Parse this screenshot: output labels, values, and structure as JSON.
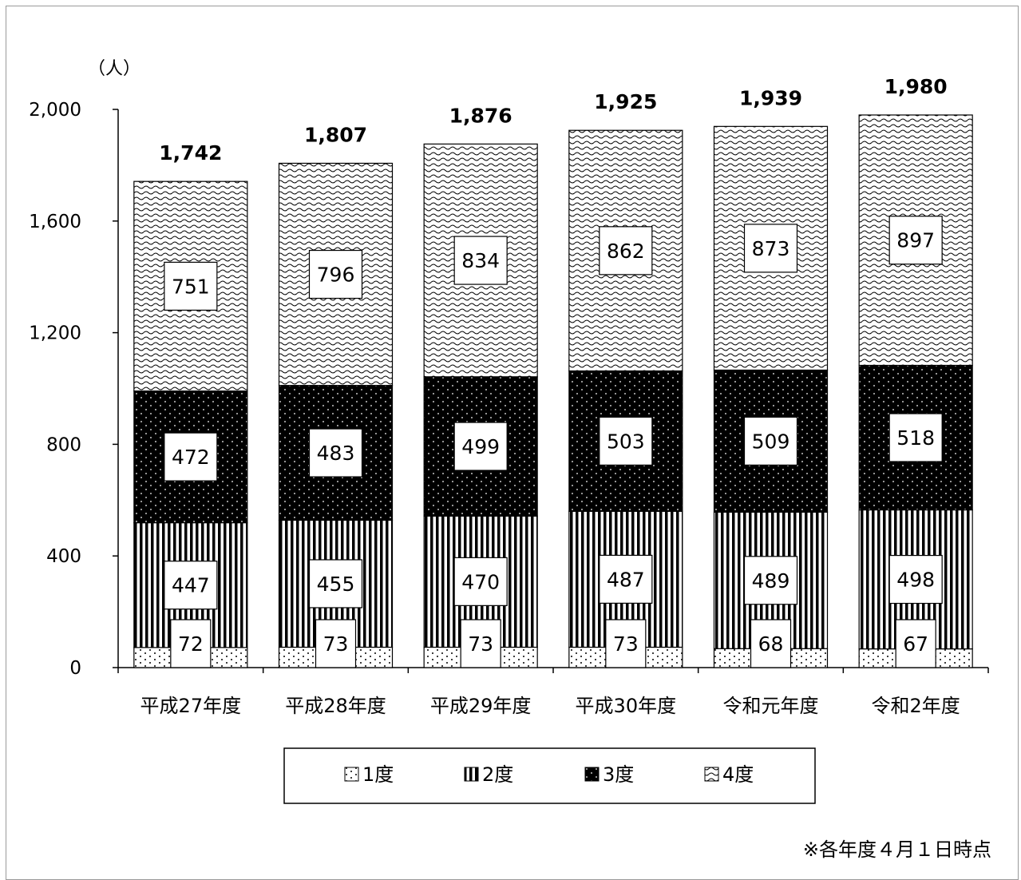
{
  "chart_data": {
    "type": "bar",
    "stacked": true,
    "unit_label": "（人）",
    "categories": [
      "平成27年度",
      "平成28年度",
      "平成29年度",
      "平成30年度",
      "令和元年度",
      "令和2年度"
    ],
    "series": [
      {
        "name": "1度",
        "values": [
          72,
          73,
          73,
          73,
          68,
          67
        ],
        "pattern": "dots-sparse"
      },
      {
        "name": "2度",
        "values": [
          447,
          455,
          470,
          487,
          489,
          498
        ],
        "pattern": "vertical-lines"
      },
      {
        "name": "3度",
        "values": [
          472,
          483,
          499,
          503,
          509,
          518
        ],
        "pattern": "black-dots"
      },
      {
        "name": "4度",
        "values": [
          751,
          796,
          834,
          862,
          873,
          897
        ],
        "pattern": "waves"
      }
    ],
    "totals": [
      "1,742",
      "1,807",
      "1,876",
      "1,925",
      "1,939",
      "1,980"
    ],
    "y_ticks": [
      "0",
      "400",
      "800",
      "1,200",
      "1,600",
      "2,000"
    ],
    "y_tick_values": [
      0,
      400,
      800,
      1200,
      1600,
      2000
    ],
    "ylim": [
      0,
      2000
    ],
    "legend_position": "bottom",
    "footnote": "※各年度４月１日時点"
  }
}
